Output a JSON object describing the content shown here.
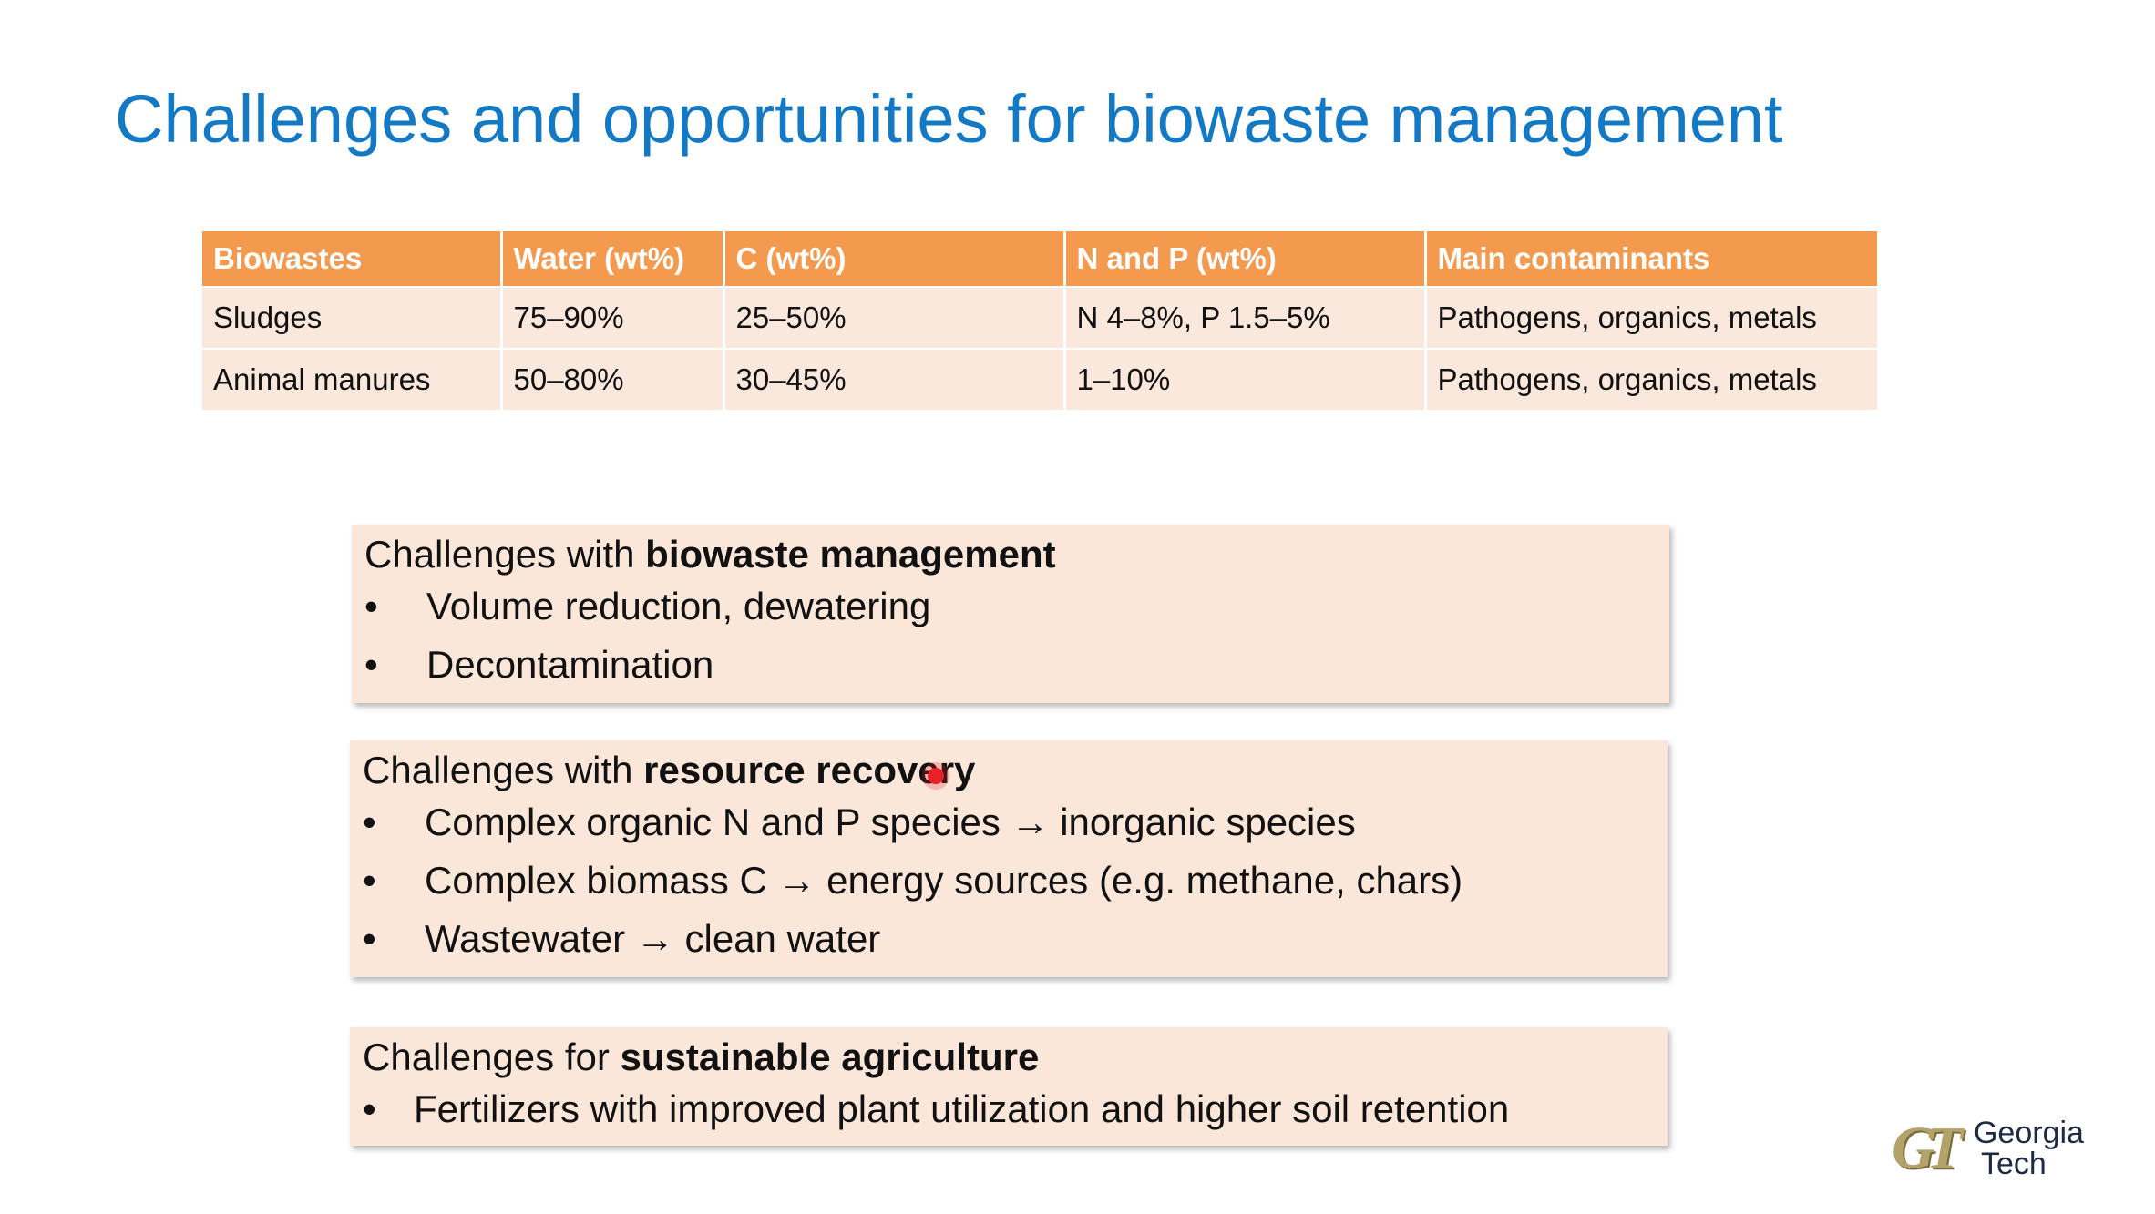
{
  "slide": {
    "title": "Challenges and opportunities for biowaste management"
  },
  "table": {
    "headers": [
      "Biowastes",
      "Water (wt%)",
      "C (wt%)",
      "N and P (wt%)",
      "Main contaminants"
    ],
    "rows": [
      [
        "Sludges",
        "75–90%",
        "25–50%",
        "N 4–8%, P 1.5–5%",
        "Pathogens, organics, metals"
      ],
      [
        "Animal manures",
        "50–80%",
        "30–45%",
        "1–10%",
        "Pathogens, organics, metals"
      ]
    ]
  },
  "boxes": [
    {
      "heading_prefix": "Challenges with ",
      "heading_bold": "biowaste management",
      "items": [
        "Volume reduction, dewatering",
        "Decontamination"
      ]
    },
    {
      "heading_prefix": "Challenges with ",
      "heading_bold": "resource recovery",
      "items": [
        "Complex organic N and P species → inorganic species",
        "Complex biomass C → energy sources (e.g. methane, chars)",
        "Wastewater → clean water"
      ]
    },
    {
      "heading_prefix": "Challenges for ",
      "heading_bold": "sustainable agriculture",
      "items": [
        "Fertilizers with improved plant utilization and higher soil retention"
      ]
    }
  ],
  "bullet_char": "•",
  "logo": {
    "monogram": "GT",
    "line1": "Georgia",
    "line2": "Tech"
  },
  "colors": {
    "title": "#1479c4",
    "table_header": "#f49a4e",
    "table_cell": "#fbe8dc",
    "box_background": "#fbe6da",
    "cursor": "#e8202a",
    "logo_gold": "#b3a369"
  }
}
